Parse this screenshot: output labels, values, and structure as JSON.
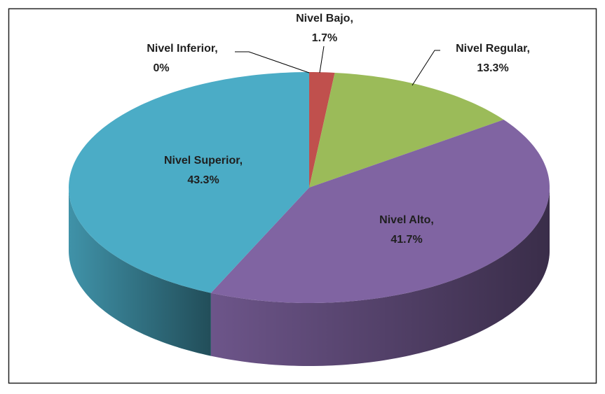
{
  "chart_data": {
    "type": "pie3d",
    "categories": [
      "Nivel Inferior,",
      "Nivel Bajo,",
      "Nivel Regular,",
      "Nivel Alto,",
      "Nivel Superior,"
    ],
    "values": [
      0,
      1.7,
      13.3,
      41.7,
      43.3
    ],
    "value_labels": [
      "0%",
      "1.7%",
      "13.3%",
      "41.7%",
      "43.3%"
    ],
    "colors": [
      "#4f81bd",
      "#c0504d",
      "#9bbb59",
      "#8064a2",
      "#4bacc6"
    ]
  }
}
